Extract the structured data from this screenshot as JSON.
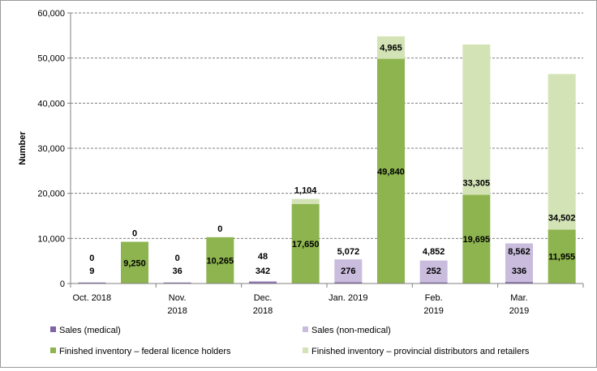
{
  "chart_data": {
    "type": "bar",
    "stacked": true,
    "title": "",
    "xlabel": "",
    "ylabel": "Number",
    "ylim": [
      0,
      60000
    ],
    "yticks": [
      0,
      10000,
      20000,
      30000,
      40000,
      50000,
      60000
    ],
    "ytick_labels": [
      "0",
      "10,000",
      "20,000",
      "30,000",
      "40,000",
      "50,000",
      "60,000"
    ],
    "grid": true,
    "legend_position": "bottom",
    "x_tick_labels": [
      {
        "text": "Oct. 2018",
        "lines": [
          "Oct. 2018"
        ]
      },
      {
        "text": "Nov. 2018",
        "lines": [
          "Nov.",
          "2018"
        ]
      },
      {
        "text": "Dec. 2018",
        "lines": [
          "Dec.",
          "2018"
        ]
      },
      {
        "text": "Jan. 2019",
        "lines": [
          "Jan. 2019"
        ]
      },
      {
        "text": "Feb. 2019",
        "lines": [
          "Feb.",
          "2019"
        ]
      },
      {
        "text": "Mar. 2019",
        "lines": [
          "Mar.",
          "2019"
        ]
      }
    ],
    "series": [
      {
        "name": "Sales (medical)",
        "color": "#7f63a6"
      },
      {
        "name": "Sales (non-medical)",
        "color": "#c9bcdd"
      },
      {
        "name": "Finished inventory – federal licence holders",
        "color": "#8db44e"
      },
      {
        "name": "Finished inventory – provincial distributors and retailers",
        "color": "#d3e3b6"
      }
    ],
    "bars": [
      {
        "month": "Oct. 2018",
        "kind": "sales",
        "segments": [
          {
            "series": "Sales (medical)",
            "value": 9,
            "label": "9"
          },
          {
            "series": "Sales (non-medical)",
            "value": 0,
            "label": "0"
          }
        ]
      },
      {
        "month": "Oct. 2018",
        "kind": "inventory",
        "segments": [
          {
            "series": "Finished inventory – federal licence holders",
            "value": 9250,
            "label": "9,250"
          },
          {
            "series": "Finished inventory – provincial distributors and retailers",
            "value": 0,
            "label": "0"
          }
        ]
      },
      {
        "month": "Nov. 2018",
        "kind": "sales",
        "segments": [
          {
            "series": "Sales (medical)",
            "value": 36,
            "label": "36"
          },
          {
            "series": "Sales (non-medical)",
            "value": 0,
            "label": "0"
          }
        ]
      },
      {
        "month": "Nov. 2018",
        "kind": "inventory",
        "segments": [
          {
            "series": "Finished inventory – federal licence holders",
            "value": 10265,
            "label": "10,265"
          },
          {
            "series": "Finished inventory – provincial distributors and retailers",
            "value": 0,
            "label": "0"
          }
        ]
      },
      {
        "month": "Dec. 2018",
        "kind": "sales",
        "segments": [
          {
            "series": "Sales (medical)",
            "value": 342,
            "label": "342"
          },
          {
            "series": "Sales (non-medical)",
            "value": 48,
            "label": "48"
          }
        ]
      },
      {
        "month": "Dec. 2018",
        "kind": "inventory",
        "segments": [
          {
            "series": "Finished inventory – federal licence holders",
            "value": 17650,
            "label": "17,650"
          },
          {
            "series": "Finished inventory – provincial distributors and retailers",
            "value": 1104,
            "label": "1,104"
          }
        ]
      },
      {
        "month": "Jan. 2019",
        "kind": "sales",
        "segments": [
          {
            "series": "Sales (medical)",
            "value": 276,
            "label": "276"
          },
          {
            "series": "Sales (non-medical)",
            "value": 5072,
            "label": "5,072"
          }
        ]
      },
      {
        "month": "Jan. 2019",
        "kind": "inventory",
        "segments": [
          {
            "series": "Finished inventory – federal licence holders",
            "value": 49840,
            "label": "49,840"
          },
          {
            "series": "Finished inventory – provincial distributors and retailers",
            "value": 4965,
            "label": "4,965"
          }
        ]
      },
      {
        "month": "Feb. 2019",
        "kind": "sales",
        "segments": [
          {
            "series": "Sales (medical)",
            "value": 252,
            "label": "252"
          },
          {
            "series": "Sales (non-medical)",
            "value": 4852,
            "label": "4,852"
          }
        ]
      },
      {
        "month": "Feb. 2019",
        "kind": "inventory",
        "segments": [
          {
            "series": "Finished inventory – federal licence holders",
            "value": 19695,
            "label": "19,695"
          },
          {
            "series": "Finished inventory – provincial distributors and retailers",
            "value": 33305,
            "label": "33,305"
          }
        ]
      },
      {
        "month": "Mar. 2019",
        "kind": "sales",
        "segments": [
          {
            "series": "Sales (medical)",
            "value": 336,
            "label": "336"
          },
          {
            "series": "Sales (non-medical)",
            "value": 8562,
            "label": "8,562"
          }
        ]
      },
      {
        "month": "Mar. 2019",
        "kind": "inventory",
        "segments": [
          {
            "series": "Finished inventory – federal licence holders",
            "value": 11955,
            "label": "11,955"
          },
          {
            "series": "Finished inventory – provincial distributors and retailers",
            "value": 34502,
            "label": "34,502"
          }
        ]
      }
    ]
  }
}
